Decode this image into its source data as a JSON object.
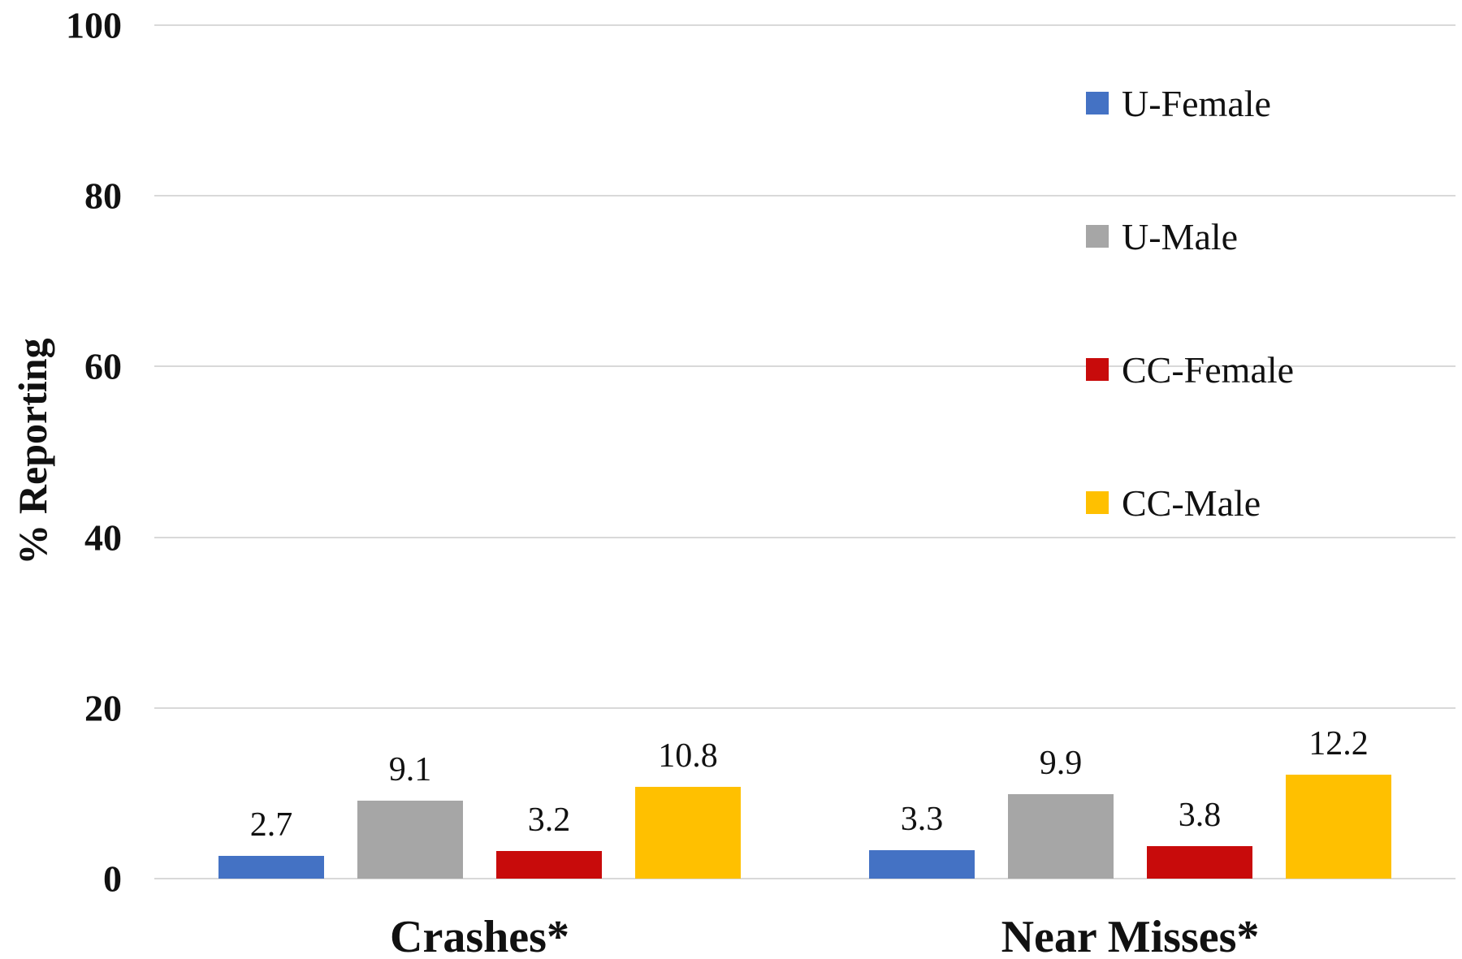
{
  "chart_data": {
    "type": "bar",
    "categories": [
      "Crashes*",
      "Near Misses*"
    ],
    "series": [
      {
        "name": "U-Female",
        "color": "#4472C4",
        "values": [
          2.7,
          3.3
        ]
      },
      {
        "name": "U-Male",
        "color": "#A6A6A6",
        "values": [
          9.1,
          9.9
        ]
      },
      {
        "name": "CC-Female",
        "color": "#C80B0B",
        "values": [
          3.2,
          3.8
        ]
      },
      {
        "name": "CC-Male",
        "color": "#FFC000",
        "values": [
          10.8,
          12.2
        ]
      }
    ],
    "title": "",
    "xlabel": "",
    "ylabel": "% Reporting",
    "ylim": [
      0,
      100
    ],
    "yticks": [
      0,
      20,
      40,
      60,
      80,
      100
    ],
    "grid": true,
    "gridline_color": "#D9D9D9",
    "legend_position": "right-top",
    "data_labels": true,
    "data_label_decimals": 1
  }
}
